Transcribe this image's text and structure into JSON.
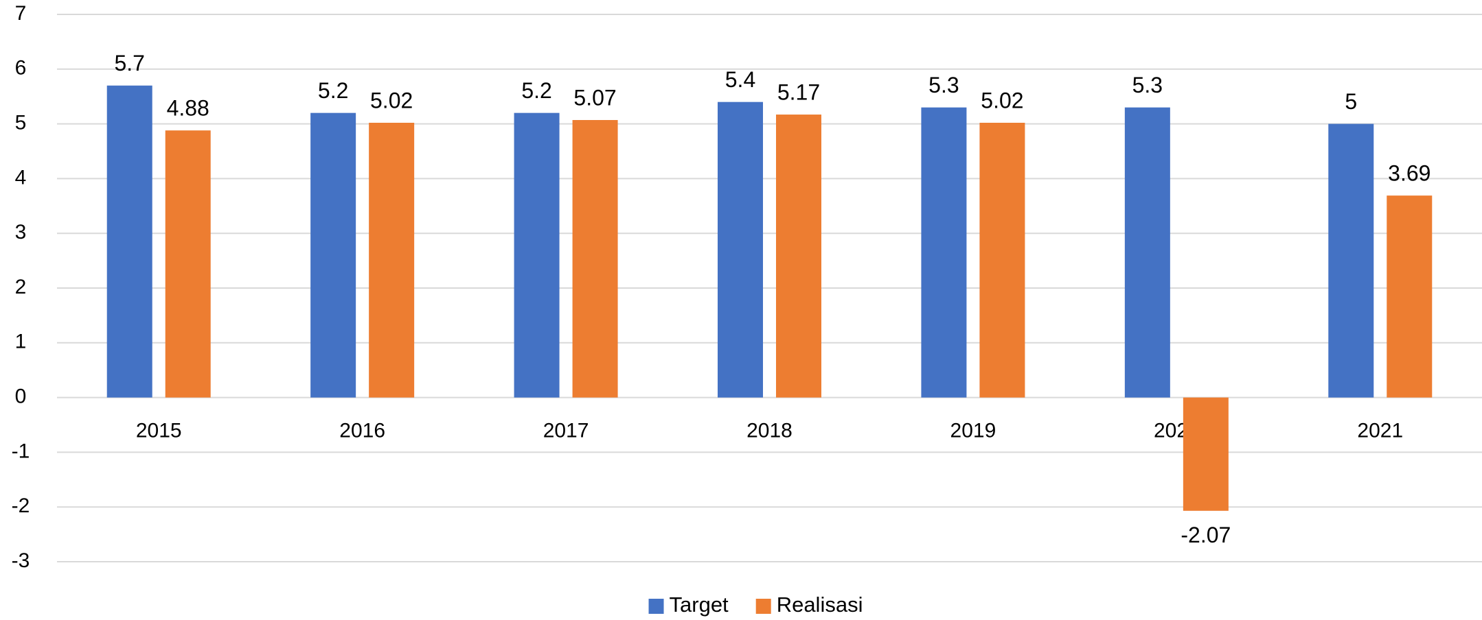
{
  "chart_data": {
    "type": "bar",
    "categories": [
      "2015",
      "2016",
      "2017",
      "2018",
      "2019",
      "2020",
      "2021"
    ],
    "series": [
      {
        "name": "Target",
        "color": "#4472c4",
        "values": [
          5.7,
          5.2,
          5.2,
          5.4,
          5.3,
          5.3,
          5
        ]
      },
      {
        "name": "Realisasi",
        "color": "#ed7d31",
        "values": [
          4.88,
          5.02,
          5.07,
          5.17,
          5.02,
          -2.07,
          3.69
        ]
      }
    ],
    "ylim": [
      -3,
      7
    ],
    "yticks": [
      -3,
      -2,
      -1,
      0,
      1,
      2,
      3,
      4,
      5,
      6,
      7
    ],
    "grid": true,
    "legend": "bottom"
  }
}
